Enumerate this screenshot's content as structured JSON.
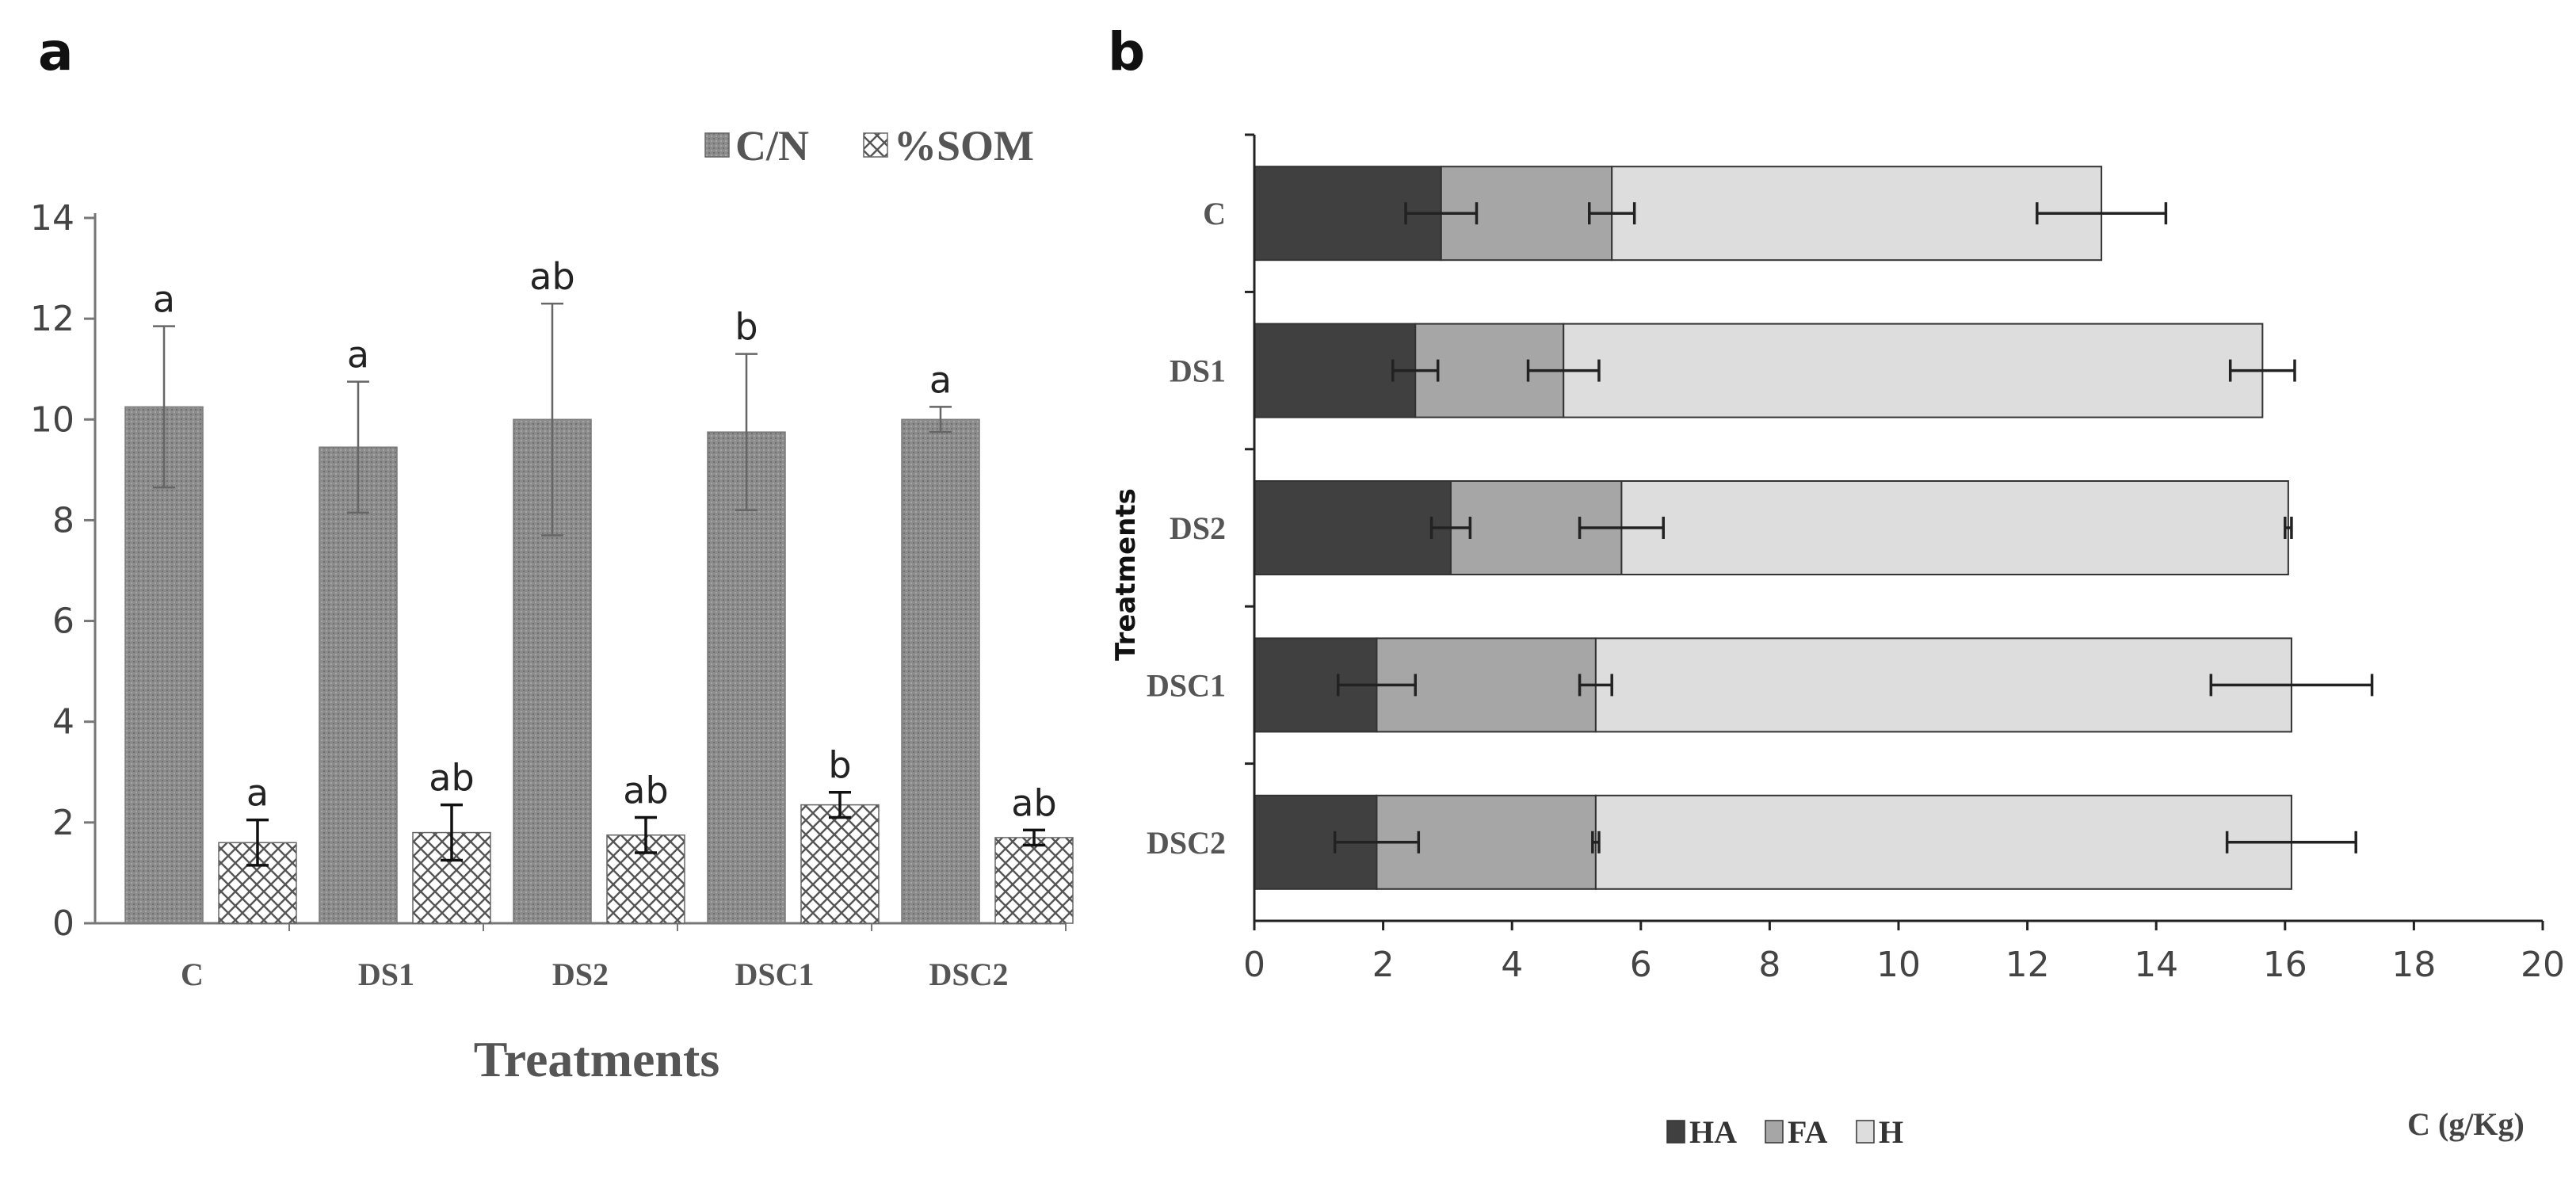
{
  "chart_data": [
    {
      "panel": "a",
      "type": "bar",
      "categories": [
        "C",
        "DS1",
        "DS2",
        "DSC1",
        "DSC2"
      ],
      "xlabel": "Treatments",
      "ylabel": "",
      "ylim": [
        0,
        14
      ],
      "yticks": [
        0,
        2,
        4,
        6,
        8,
        10,
        12,
        14
      ],
      "ytick_labels": [
        "0",
        "2",
        "4",
        "6",
        "8",
        "10",
        "12",
        "14"
      ],
      "legend_position": "top-right",
      "series": [
        {
          "name": "C/N",
          "color": "#8c8c8c",
          "pattern": "fine-dots",
          "values": [
            10.25,
            9.45,
            10.0,
            9.75,
            10.0
          ],
          "errors": [
            1.6,
            1.3,
            2.3,
            1.55,
            0.25
          ],
          "letters": [
            "a",
            "a",
            "ab",
            "b",
            "a"
          ]
        },
        {
          "name": "%SOM",
          "color": "#ffffff",
          "pattern": "crosshatch",
          "values": [
            1.6,
            1.8,
            1.75,
            2.35,
            1.7
          ],
          "errors": [
            0.45,
            0.55,
            0.35,
            0.25,
            0.15
          ],
          "letters": [
            "a",
            "ab",
            "ab",
            "b",
            "ab"
          ]
        }
      ]
    },
    {
      "panel": "b",
      "type": "bar",
      "orientation": "horizontal",
      "stacked": true,
      "categories": [
        "C",
        "DS1",
        "DS2",
        "DSC1",
        "DSC2"
      ],
      "xlabel": "C (g/Kg)",
      "ylabel": "Treatments",
      "xlim": [
        0,
        20
      ],
      "xticks": [
        0,
        2,
        4,
        6,
        8,
        10,
        12,
        14,
        16,
        18,
        20
      ],
      "xtick_labels": [
        "0",
        "2",
        "4",
        "6",
        "8",
        "10",
        "12",
        "14",
        "16",
        "18",
        "20"
      ],
      "legend_position": "bottom",
      "series": [
        {
          "name": "HA",
          "color": "#404040",
          "values": [
            2.9,
            2.5,
            3.05,
            1.9,
            1.9
          ],
          "errors": [
            0.55,
            0.35,
            0.3,
            0.6,
            0.65
          ]
        },
        {
          "name": "FA",
          "color": "#a6a6a6",
          "values": [
            2.65,
            2.3,
            2.65,
            3.4,
            3.4
          ],
          "errors": [
            0.35,
            0.55,
            0.65,
            0.25,
            0.05
          ]
        },
        {
          "name": "H",
          "color": "#dddddd",
          "values": [
            7.6,
            10.85,
            10.35,
            10.8,
            10.8
          ],
          "errors": [
            1.0,
            0.5,
            0.05,
            1.25,
            1.0
          ]
        }
      ]
    }
  ],
  "labels": {
    "panel_a": "a",
    "panel_b": "b"
  }
}
